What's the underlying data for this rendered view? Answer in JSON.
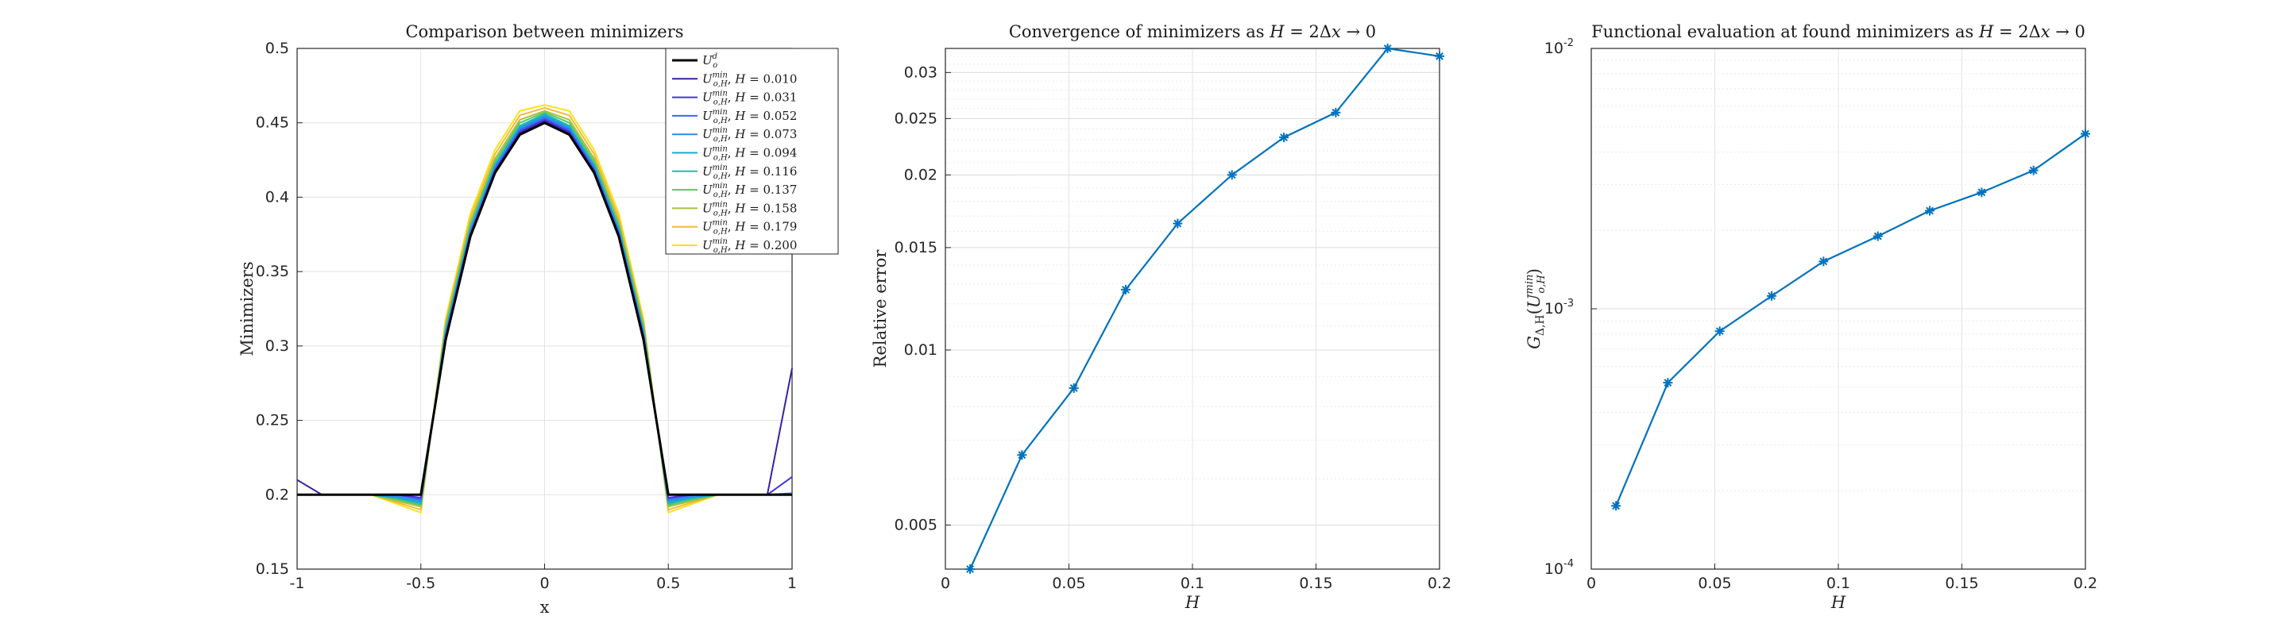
{
  "chart_data": [
    {
      "type": "line",
      "title": "Comparison between minimizers",
      "xlabel": "x",
      "ylabel": "Minimizers",
      "xlim": [
        -1,
        1
      ],
      "ylim": [
        0.15,
        0.5
      ],
      "xticks": [
        "-1",
        "-0.5",
        "0",
        "0.5",
        "1"
      ],
      "yticks": [
        "0.15",
        "0.2",
        "0.25",
        "0.3",
        "0.35",
        "0.4",
        "0.45",
        "0.5"
      ],
      "grid": true,
      "legend_position": "top-right",
      "x": [
        -1.0,
        -0.9,
        -0.8,
        -0.7,
        -0.6,
        -0.5,
        -0.4,
        -0.3,
        -0.2,
        -0.1,
        0.0,
        0.1,
        0.2,
        0.3,
        0.4,
        0.5,
        0.6,
        0.7,
        0.8,
        0.9,
        1.0
      ],
      "series": [
        {
          "name": "U_o^d",
          "color": "#000000",
          "values": [
            0.2,
            0.2,
            0.2,
            0.2,
            0.2,
            0.2,
            0.304,
            0.3735,
            0.4165,
            0.442,
            0.45,
            0.442,
            0.4165,
            0.3735,
            0.304,
            0.2,
            0.2,
            0.2,
            0.2,
            0.2,
            0.2
          ]
        },
        {
          "name": "H = 0.010",
          "color": "#3b1fa6",
          "values": [
            0.21,
            0.2,
            0.2,
            0.2,
            0.2,
            0.2,
            0.305,
            0.374,
            0.417,
            0.443,
            0.451,
            0.443,
            0.417,
            0.374,
            0.305,
            0.2,
            0.2,
            0.2,
            0.2,
            0.2,
            0.285
          ]
        },
        {
          "name": "H = 0.031",
          "color": "#4536d9",
          "values": [
            0.2,
            0.2,
            0.2,
            0.2,
            0.2,
            0.198,
            0.306,
            0.375,
            0.418,
            0.444,
            0.452,
            0.444,
            0.418,
            0.375,
            0.306,
            0.198,
            0.2,
            0.2,
            0.2,
            0.2,
            0.212
          ]
        },
        {
          "name": "H = 0.052",
          "color": "#3d66ee",
          "values": [
            0.2,
            0.2,
            0.2,
            0.2,
            0.2,
            0.197,
            0.307,
            0.376,
            0.419,
            0.445,
            0.453,
            0.445,
            0.419,
            0.376,
            0.307,
            0.197,
            0.2,
            0.2,
            0.2,
            0.2,
            0.201
          ]
        },
        {
          "name": "H = 0.073",
          "color": "#2c8cf0",
          "values": [
            0.2,
            0.2,
            0.2,
            0.2,
            0.199,
            0.196,
            0.308,
            0.377,
            0.42,
            0.446,
            0.454,
            0.446,
            0.42,
            0.377,
            0.308,
            0.196,
            0.199,
            0.2,
            0.2,
            0.2,
            0.2
          ]
        },
        {
          "name": "H = 0.094",
          "color": "#17a8d4",
          "values": [
            0.2,
            0.2,
            0.2,
            0.2,
            0.198,
            0.195,
            0.309,
            0.378,
            0.421,
            0.447,
            0.455,
            0.447,
            0.421,
            0.378,
            0.309,
            0.195,
            0.198,
            0.2,
            0.2,
            0.2,
            0.2
          ]
        },
        {
          "name": "H = 0.116",
          "color": "#1cbfb0",
          "values": [
            0.2,
            0.2,
            0.2,
            0.2,
            0.198,
            0.194,
            0.31,
            0.379,
            0.422,
            0.448,
            0.456,
            0.448,
            0.422,
            0.379,
            0.31,
            0.194,
            0.198,
            0.2,
            0.2,
            0.2,
            0.2
          ]
        },
        {
          "name": "H = 0.137",
          "color": "#5bc862",
          "values": [
            0.2,
            0.2,
            0.2,
            0.2,
            0.197,
            0.193,
            0.312,
            0.381,
            0.424,
            0.45,
            0.457,
            0.45,
            0.424,
            0.381,
            0.312,
            0.193,
            0.197,
            0.2,
            0.2,
            0.2,
            0.2
          ]
        },
        {
          "name": "H = 0.158",
          "color": "#a8c13c",
          "values": [
            0.2,
            0.2,
            0.2,
            0.2,
            0.196,
            0.192,
            0.314,
            0.383,
            0.426,
            0.452,
            0.458,
            0.452,
            0.426,
            0.383,
            0.314,
            0.192,
            0.196,
            0.2,
            0.2,
            0.2,
            0.2
          ]
        },
        {
          "name": "H = 0.179",
          "color": "#f5b93a",
          "values": [
            0.2,
            0.2,
            0.2,
            0.2,
            0.195,
            0.19,
            0.316,
            0.386,
            0.429,
            0.455,
            0.46,
            0.455,
            0.429,
            0.386,
            0.316,
            0.19,
            0.195,
            0.2,
            0.2,
            0.2,
            0.2
          ]
        },
        {
          "name": "H = 0.200",
          "color": "#f7e41c",
          "values": [
            0.2,
            0.2,
            0.2,
            0.2,
            0.194,
            0.188,
            0.318,
            0.389,
            0.432,
            0.458,
            0.462,
            0.458,
            0.432,
            0.389,
            0.318,
            0.188,
            0.194,
            0.2,
            0.2,
            0.2,
            0.2
          ]
        }
      ],
      "legend": [
        {
          "base": "U",
          "sup": "d",
          "sub": "o",
          "h": ""
        },
        {
          "base": "U",
          "sup": "min",
          "sub": "o,H",
          "h": "0.010"
        },
        {
          "base": "U",
          "sup": "min",
          "sub": "o,H",
          "h": "0.031"
        },
        {
          "base": "U",
          "sup": "min",
          "sub": "o,H",
          "h": "0.052"
        },
        {
          "base": "U",
          "sup": "min",
          "sub": "o,H",
          "h": "0.073"
        },
        {
          "base": "U",
          "sup": "min",
          "sub": "o,H",
          "h": "0.094"
        },
        {
          "base": "U",
          "sup": "min",
          "sub": "o,H",
          "h": "0.116"
        },
        {
          "base": "U",
          "sup": "min",
          "sub": "o,H",
          "h": "0.137"
        },
        {
          "base": "U",
          "sup": "min",
          "sub": "o,H",
          "h": "0.158"
        },
        {
          "base": "U",
          "sup": "min",
          "sub": "o,H",
          "h": "0.179"
        },
        {
          "base": "U",
          "sup": "min",
          "sub": "o,H",
          "h": "0.200"
        }
      ]
    },
    {
      "type": "line",
      "title": "Convergence of minimizers as H = 2Δx → 0",
      "xlabel": "H",
      "ylabel": "Relative error",
      "xlim": [
        0,
        0.2
      ],
      "ylim": [
        0.0042,
        0.033
      ],
      "yscale": "log",
      "xticks": [
        "0",
        "0.05",
        "0.1",
        "0.15",
        "0.2"
      ],
      "yticks": [
        "0.005",
        "0.01",
        "0.015",
        "0.02",
        "0.025",
        "0.03"
      ],
      "marker": "asterisk",
      "color": "#0072bd",
      "grid": true,
      "series": [
        {
          "x": [
            0.01,
            0.031,
            0.052,
            0.073,
            0.094,
            0.116,
            0.137,
            0.158,
            0.179,
            0.2
          ],
          "values": [
            0.0042,
            0.0066,
            0.0086,
            0.0127,
            0.0165,
            0.02,
            0.0232,
            0.0256,
            0.033,
            0.032
          ]
        }
      ]
    },
    {
      "type": "line",
      "title": "Functional evaluation at found minimizers as H = 2Δx → 0",
      "xlabel": "H",
      "ylabel_base": "G",
      "ylabel_sub": "Δ,H",
      "ylabel_arg_base": "U",
      "ylabel_arg_sup": "min",
      "ylabel_arg_sub": "o,H",
      "xlim": [
        0,
        0.2
      ],
      "ylim": [
        0.0001,
        0.01
      ],
      "yscale": "log",
      "xticks": [
        "0",
        "0.05",
        "0.1",
        "0.15",
        "0.2"
      ],
      "yticks": [
        {
          "base": "10",
          "exp": "-4"
        },
        {
          "base": "10",
          "exp": "-3"
        },
        {
          "base": "10",
          "exp": "-2"
        }
      ],
      "marker": "asterisk",
      "color": "#0072bd",
      "grid": true,
      "series": [
        {
          "x": [
            0.01,
            0.031,
            0.052,
            0.073,
            0.094,
            0.116,
            0.137,
            0.158,
            0.179,
            0.2
          ],
          "values": [
            0.000175,
            0.00052,
            0.00082,
            0.00112,
            0.00152,
            0.0019,
            0.00238,
            0.0028,
            0.0034,
            0.0047
          ]
        }
      ]
    }
  ]
}
